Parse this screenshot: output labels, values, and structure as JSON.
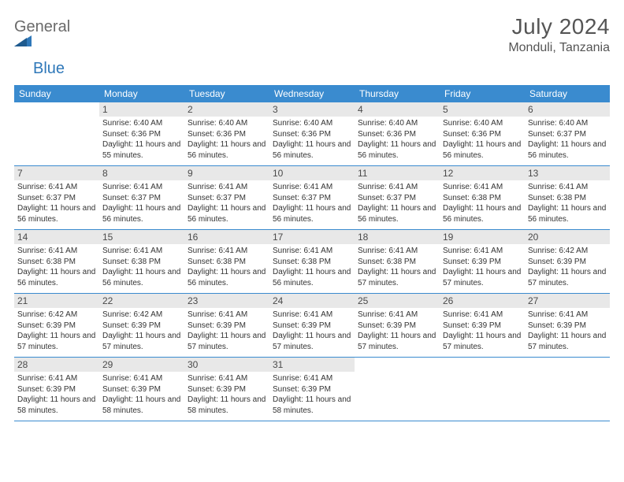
{
  "logo": {
    "part1": "General",
    "part2": "Blue"
  },
  "title": "July 2024",
  "location": "Monduli, Tanzania",
  "colors": {
    "header_bg": "#3a8bcf",
    "header_text": "#ffffff",
    "daynum_bg": "#e8e8e8",
    "text": "#333333",
    "title_text": "#555555",
    "logo_gray": "#6a6a6a",
    "logo_blue": "#2f78b9",
    "border": "#3a8bcf"
  },
  "dow": [
    "Sunday",
    "Monday",
    "Tuesday",
    "Wednesday",
    "Thursday",
    "Friday",
    "Saturday"
  ],
  "weeks": [
    [
      {
        "day": "",
        "sunrise": "",
        "sunset": "",
        "daylight": ""
      },
      {
        "day": "1",
        "sunrise": "6:40 AM",
        "sunset": "6:36 PM",
        "daylight": "11 hours and 55 minutes."
      },
      {
        "day": "2",
        "sunrise": "6:40 AM",
        "sunset": "6:36 PM",
        "daylight": "11 hours and 56 minutes."
      },
      {
        "day": "3",
        "sunrise": "6:40 AM",
        "sunset": "6:36 PM",
        "daylight": "11 hours and 56 minutes."
      },
      {
        "day": "4",
        "sunrise": "6:40 AM",
        "sunset": "6:36 PM",
        "daylight": "11 hours and 56 minutes."
      },
      {
        "day": "5",
        "sunrise": "6:40 AM",
        "sunset": "6:36 PM",
        "daylight": "11 hours and 56 minutes."
      },
      {
        "day": "6",
        "sunrise": "6:40 AM",
        "sunset": "6:37 PM",
        "daylight": "11 hours and 56 minutes."
      }
    ],
    [
      {
        "day": "7",
        "sunrise": "6:41 AM",
        "sunset": "6:37 PM",
        "daylight": "11 hours and 56 minutes."
      },
      {
        "day": "8",
        "sunrise": "6:41 AM",
        "sunset": "6:37 PM",
        "daylight": "11 hours and 56 minutes."
      },
      {
        "day": "9",
        "sunrise": "6:41 AM",
        "sunset": "6:37 PM",
        "daylight": "11 hours and 56 minutes."
      },
      {
        "day": "10",
        "sunrise": "6:41 AM",
        "sunset": "6:37 PM",
        "daylight": "11 hours and 56 minutes."
      },
      {
        "day": "11",
        "sunrise": "6:41 AM",
        "sunset": "6:37 PM",
        "daylight": "11 hours and 56 minutes."
      },
      {
        "day": "12",
        "sunrise": "6:41 AM",
        "sunset": "6:38 PM",
        "daylight": "11 hours and 56 minutes."
      },
      {
        "day": "13",
        "sunrise": "6:41 AM",
        "sunset": "6:38 PM",
        "daylight": "11 hours and 56 minutes."
      }
    ],
    [
      {
        "day": "14",
        "sunrise": "6:41 AM",
        "sunset": "6:38 PM",
        "daylight": "11 hours and 56 minutes."
      },
      {
        "day": "15",
        "sunrise": "6:41 AM",
        "sunset": "6:38 PM",
        "daylight": "11 hours and 56 minutes."
      },
      {
        "day": "16",
        "sunrise": "6:41 AM",
        "sunset": "6:38 PM",
        "daylight": "11 hours and 56 minutes."
      },
      {
        "day": "17",
        "sunrise": "6:41 AM",
        "sunset": "6:38 PM",
        "daylight": "11 hours and 56 minutes."
      },
      {
        "day": "18",
        "sunrise": "6:41 AM",
        "sunset": "6:38 PM",
        "daylight": "11 hours and 57 minutes."
      },
      {
        "day": "19",
        "sunrise": "6:41 AM",
        "sunset": "6:39 PM",
        "daylight": "11 hours and 57 minutes."
      },
      {
        "day": "20",
        "sunrise": "6:42 AM",
        "sunset": "6:39 PM",
        "daylight": "11 hours and 57 minutes."
      }
    ],
    [
      {
        "day": "21",
        "sunrise": "6:42 AM",
        "sunset": "6:39 PM",
        "daylight": "11 hours and 57 minutes."
      },
      {
        "day": "22",
        "sunrise": "6:42 AM",
        "sunset": "6:39 PM",
        "daylight": "11 hours and 57 minutes."
      },
      {
        "day": "23",
        "sunrise": "6:41 AM",
        "sunset": "6:39 PM",
        "daylight": "11 hours and 57 minutes."
      },
      {
        "day": "24",
        "sunrise": "6:41 AM",
        "sunset": "6:39 PM",
        "daylight": "11 hours and 57 minutes."
      },
      {
        "day": "25",
        "sunrise": "6:41 AM",
        "sunset": "6:39 PM",
        "daylight": "11 hours and 57 minutes."
      },
      {
        "day": "26",
        "sunrise": "6:41 AM",
        "sunset": "6:39 PM",
        "daylight": "11 hours and 57 minutes."
      },
      {
        "day": "27",
        "sunrise": "6:41 AM",
        "sunset": "6:39 PM",
        "daylight": "11 hours and 57 minutes."
      }
    ],
    [
      {
        "day": "28",
        "sunrise": "6:41 AM",
        "sunset": "6:39 PM",
        "daylight": "11 hours and 58 minutes."
      },
      {
        "day": "29",
        "sunrise": "6:41 AM",
        "sunset": "6:39 PM",
        "daylight": "11 hours and 58 minutes."
      },
      {
        "day": "30",
        "sunrise": "6:41 AM",
        "sunset": "6:39 PM",
        "daylight": "11 hours and 58 minutes."
      },
      {
        "day": "31",
        "sunrise": "6:41 AM",
        "sunset": "6:39 PM",
        "daylight": "11 hours and 58 minutes."
      },
      {
        "day": "",
        "sunrise": "",
        "sunset": "",
        "daylight": ""
      },
      {
        "day": "",
        "sunrise": "",
        "sunset": "",
        "daylight": ""
      },
      {
        "day": "",
        "sunrise": "",
        "sunset": "",
        "daylight": ""
      }
    ]
  ],
  "labels": {
    "sunrise": "Sunrise:",
    "sunset": "Sunset:",
    "daylight": "Daylight:"
  }
}
